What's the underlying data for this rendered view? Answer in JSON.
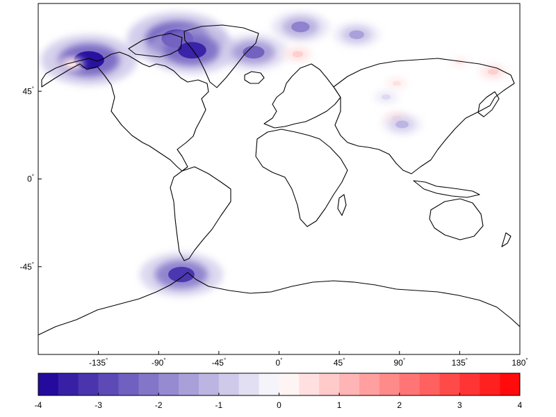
{
  "map": {
    "x_ticks": [
      {
        "value": -135,
        "label": "-135"
      },
      {
        "value": -90,
        "label": "-90"
      },
      {
        "value": -45,
        "label": "-45"
      },
      {
        "value": 0,
        "label": "0"
      },
      {
        "value": 45,
        "label": "45"
      },
      {
        "value": 90,
        "label": "90"
      },
      {
        "value": 135,
        "label": "135"
      },
      {
        "value": 180,
        "label": "180"
      }
    ],
    "y_ticks": [
      {
        "value": 45,
        "label": "45"
      },
      {
        "value": 0,
        "label": "0"
      },
      {
        "value": -45,
        "label": "-45"
      }
    ],
    "degree_symbol": "°",
    "xlim": [
      -180,
      180
    ],
    "ylim": [
      -90,
      90
    ],
    "colormap": {
      "min": -4,
      "max": 4,
      "step": 0.333,
      "negative_color": "#1a0099",
      "mid_color": "#ffffff",
      "positive_color": "#ff0000"
    },
    "anomalies": [
      {
        "region": "canadian-arctic",
        "lon": -76,
        "lat": 72,
        "value": -4
      },
      {
        "region": "baffin-bay",
        "lon": -65,
        "lat": 66,
        "value": -3.5
      },
      {
        "region": "alaska",
        "lon": -142,
        "lat": 61,
        "value": -3.8
      },
      {
        "region": "patagonia",
        "lon": -73,
        "lat": -49,
        "value": -3.2
      },
      {
        "region": "iceland",
        "lon": -19,
        "lat": 65,
        "value": -2.5
      },
      {
        "region": "svalbard",
        "lon": 16,
        "lat": 78,
        "value": -2
      },
      {
        "region": "novaya-zemlya",
        "lon": 58,
        "lat": 74,
        "value": -1.5
      },
      {
        "region": "scandinavia",
        "lon": 14,
        "lat": 64,
        "value": 0.8
      },
      {
        "region": "kamchatka",
        "lon": 160,
        "lat": 55,
        "value": 0.8
      },
      {
        "region": "tibet",
        "lon": 88,
        "lat": 31,
        "value": 0.7
      },
      {
        "region": "himalaya",
        "lon": 92,
        "lat": 28,
        "value": -1.2
      },
      {
        "region": "altai",
        "lon": 88,
        "lat": 49,
        "value": 0.5
      },
      {
        "region": "tian-shan",
        "lon": 80,
        "lat": 42,
        "value": -0.6
      },
      {
        "region": "west-siberia",
        "lon": 135,
        "lat": 60,
        "value": 0.4
      },
      {
        "region": "yukon",
        "lon": -155,
        "lat": 59,
        "value": 0.5
      }
    ]
  },
  "colorbar": {
    "tick_labels": [
      {
        "value": -4,
        "label": "-4"
      },
      {
        "value": -3,
        "label": "-3"
      },
      {
        "value": -2,
        "label": "-2"
      },
      {
        "value": -1,
        "label": "-1"
      },
      {
        "value": 0,
        "label": "0"
      },
      {
        "value": 1,
        "label": "1"
      },
      {
        "value": 2,
        "label": "2"
      },
      {
        "value": 3,
        "label": "3"
      },
      {
        "value": 4,
        "label": "4"
      }
    ]
  }
}
